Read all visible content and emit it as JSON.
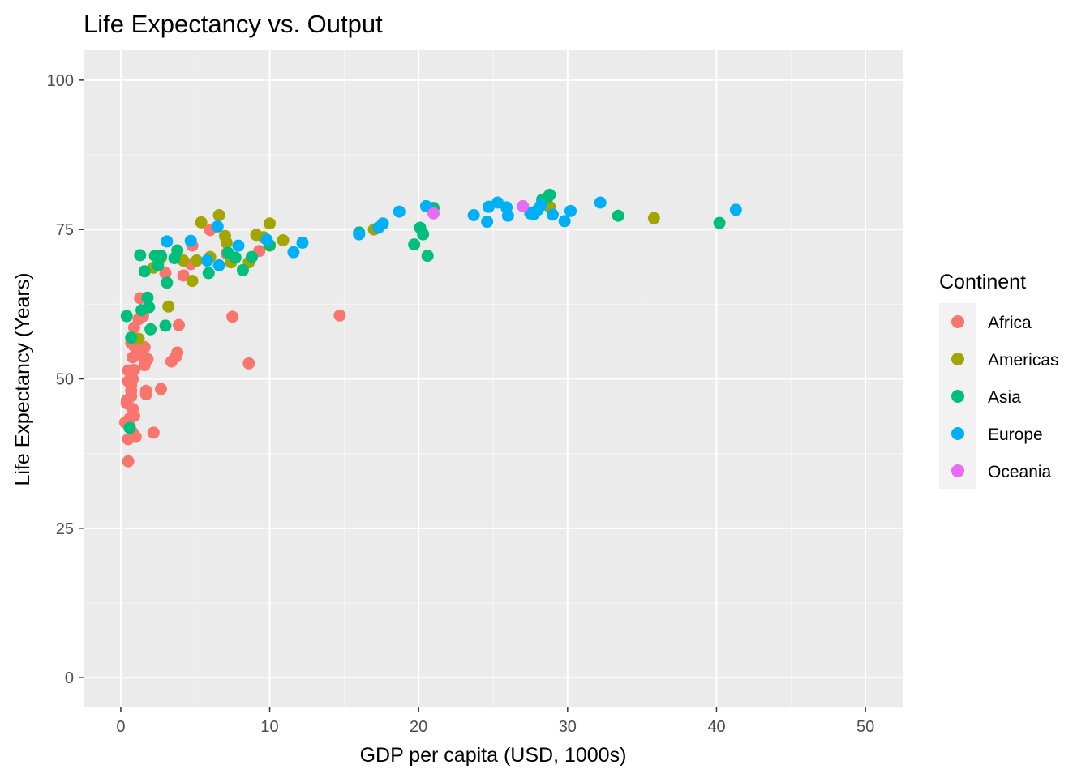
{
  "chart_data": {
    "type": "scatter",
    "title": "Life Expectancy vs. Output",
    "xlabel": "GDP per capita (USD, 1000s)",
    "ylabel": "Life Expectancy (Years)",
    "xlim": [
      -2.5,
      52.5
    ],
    "ylim": [
      -5,
      105
    ],
    "x_ticks": [
      0,
      10,
      20,
      30,
      40,
      50
    ],
    "y_ticks": [
      0,
      25,
      50,
      75,
      100
    ],
    "grid": true,
    "legend": {
      "title": "Continent",
      "position": "right"
    },
    "series": [
      {
        "name": "Africa",
        "color": "#F8766D",
        "points": [
          [
            0.3,
            42.7
          ],
          [
            0.4,
            45.9
          ],
          [
            0.4,
            46.4
          ],
          [
            0.5,
            49.6
          ],
          [
            0.5,
            51.4
          ],
          [
            0.5,
            39.9
          ],
          [
            0.5,
            36.2
          ],
          [
            0.6,
            43.4
          ],
          [
            0.6,
            42.1
          ],
          [
            0.7,
            47.1
          ],
          [
            0.7,
            48.0
          ],
          [
            0.7,
            49.0
          ],
          [
            0.7,
            56.0
          ],
          [
            0.8,
            53.6
          ],
          [
            0.8,
            50.0
          ],
          [
            0.8,
            45.0
          ],
          [
            0.8,
            41.0
          ],
          [
            0.9,
            58.6
          ],
          [
            0.9,
            55.5
          ],
          [
            0.9,
            51.5
          ],
          [
            0.9,
            43.8
          ],
          [
            1.0,
            40.3
          ],
          [
            1.1,
            55.3
          ],
          [
            1.2,
            60.0
          ],
          [
            1.3,
            63.5
          ],
          [
            1.4,
            54.0
          ],
          [
            1.5,
            60.5
          ],
          [
            1.6,
            55.3
          ],
          [
            1.6,
            52.3
          ],
          [
            1.7,
            48.0
          ],
          [
            1.7,
            47.4
          ],
          [
            1.8,
            53.3
          ],
          [
            2.2,
            41.0
          ],
          [
            2.7,
            48.3
          ],
          [
            3.0,
            67.7
          ],
          [
            3.4,
            52.9
          ],
          [
            3.7,
            53.7
          ],
          [
            3.8,
            54.4
          ],
          [
            3.9,
            59.0
          ],
          [
            4.2,
            67.3
          ],
          [
            4.7,
            69.2
          ],
          [
            4.8,
            72.3
          ],
          [
            6.0,
            74.9
          ],
          [
            7.1,
            71.0
          ],
          [
            7.5,
            60.4
          ],
          [
            8.6,
            52.6
          ],
          [
            9.3,
            71.4
          ],
          [
            14.7,
            60.6
          ]
        ]
      },
      {
        "name": "Americas",
        "color": "#A3A500",
        "points": [
          [
            1.2,
            56.7
          ],
          [
            2.2,
            68.6
          ],
          [
            2.7,
            70.3
          ],
          [
            3.2,
            62.1
          ],
          [
            4.2,
            69.8
          ],
          [
            4.8,
            66.4
          ],
          [
            5.1,
            69.8
          ],
          [
            5.4,
            76.2
          ],
          [
            6.0,
            70.4
          ],
          [
            6.6,
            77.4
          ],
          [
            7.0,
            73.9
          ],
          [
            7.1,
            72.8
          ],
          [
            7.4,
            69.5
          ],
          [
            8.6,
            69.5
          ],
          [
            9.1,
            74.1
          ],
          [
            9.6,
            73.7
          ],
          [
            10.0,
            76.0
          ],
          [
            10.0,
            72.3
          ],
          [
            10.9,
            73.2
          ],
          [
            17.0,
            75.0
          ],
          [
            28.8,
            78.8
          ],
          [
            35.8,
            76.9
          ]
        ]
      },
      {
        "name": "Asia",
        "color": "#00BF7D",
        "points": [
          [
            0.4,
            60.5
          ],
          [
            0.6,
            41.8
          ],
          [
            0.7,
            56.9
          ],
          [
            1.3,
            70.7
          ],
          [
            1.4,
            61.5
          ],
          [
            1.6,
            68.0
          ],
          [
            1.8,
            63.6
          ],
          [
            1.9,
            62.0
          ],
          [
            2.0,
            58.3
          ],
          [
            2.3,
            70.6
          ],
          [
            2.5,
            69.0
          ],
          [
            2.7,
            70.6
          ],
          [
            3.0,
            58.9
          ],
          [
            3.1,
            66.1
          ],
          [
            3.6,
            70.2
          ],
          [
            3.8,
            71.5
          ],
          [
            5.9,
            67.7
          ],
          [
            7.2,
            71.1
          ],
          [
            7.7,
            70.3
          ],
          [
            8.2,
            68.2
          ],
          [
            8.8,
            70.4
          ],
          [
            10.0,
            72.4
          ],
          [
            16.0,
            74.5
          ],
          [
            19.7,
            72.5
          ],
          [
            20.1,
            75.3
          ],
          [
            20.3,
            74.2
          ],
          [
            20.6,
            70.6
          ],
          [
            21.0,
            78.6
          ],
          [
            28.3,
            80.0
          ],
          [
            28.7,
            80.5
          ],
          [
            28.8,
            80.8
          ],
          [
            33.4,
            77.3
          ],
          [
            40.2,
            76.1
          ]
        ]
      },
      {
        "name": "Europe",
        "color": "#00B0F6",
        "points": [
          [
            3.1,
            73.0
          ],
          [
            4.7,
            73.1
          ],
          [
            5.8,
            69.8
          ],
          [
            6.5,
            75.5
          ],
          [
            6.6,
            69.0
          ],
          [
            7.9,
            72.3
          ],
          [
            9.8,
            73.3
          ],
          [
            11.6,
            71.2
          ],
          [
            12.2,
            72.8
          ],
          [
            16.0,
            74.2
          ],
          [
            17.3,
            75.3
          ],
          [
            17.6,
            76.0
          ],
          [
            18.7,
            78.0
          ],
          [
            20.5,
            78.9
          ],
          [
            23.7,
            77.4
          ],
          [
            24.6,
            76.3
          ],
          [
            24.7,
            78.8
          ],
          [
            25.3,
            79.5
          ],
          [
            25.9,
            78.7
          ],
          [
            26.0,
            77.3
          ],
          [
            27.5,
            77.7
          ],
          [
            27.7,
            77.5
          ],
          [
            28.0,
            78.3
          ],
          [
            28.2,
            79.0
          ],
          [
            29.0,
            77.5
          ],
          [
            29.8,
            76.4
          ],
          [
            30.2,
            78.1
          ],
          [
            32.2,
            79.5
          ],
          [
            41.3,
            78.3
          ]
        ]
      },
      {
        "name": "Oceania",
        "color": "#E76BF3",
        "points": [
          [
            21.0,
            77.7
          ],
          [
            27.0,
            78.9
          ]
        ]
      }
    ]
  }
}
